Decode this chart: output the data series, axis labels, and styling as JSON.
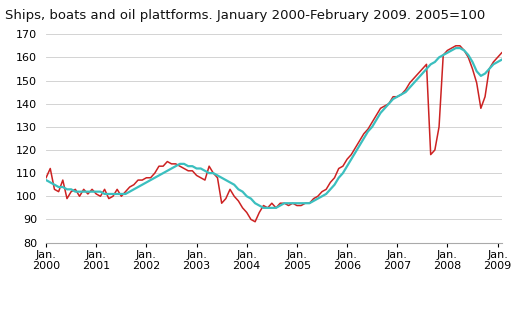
{
  "title": "Ships, boats and oil plattforms. January 2000-February 2009. 2005=100",
  "trend_color": "#3BBFBF",
  "seasonal_color": "#CC2222",
  "trend_linewidth": 1.6,
  "seasonal_linewidth": 1.1,
  "background_color": "#ffffff",
  "grid_color": "#cccccc",
  "title_fontsize": 9.5,
  "tick_fontsize": 8,
  "legend_fontsize": 8.5,
  "ylim": [
    80,
    170
  ],
  "yticks": [
    80,
    90,
    100,
    110,
    120,
    130,
    140,
    150,
    160,
    170
  ],
  "xtick_positions": [
    0,
    12,
    24,
    36,
    48,
    60,
    72,
    84,
    96,
    108
  ],
  "xtick_labels": [
    "Jan.\n2000",
    "Jan.\n2001",
    "Jan.\n2002",
    "Jan.\n2003",
    "Jan.\n2004",
    "Jan.\n2005",
    "Jan.\n2006",
    "Jan.\n2007",
    "Jan.\n2008",
    "Jan.\n2009"
  ],
  "n_months": 110,
  "trend_vals": [
    107,
    106,
    105,
    104,
    104,
    103,
    103,
    102,
    102,
    102,
    102,
    102,
    102,
    102,
    101,
    101,
    101,
    101,
    101,
    101,
    102,
    103,
    104,
    105,
    106,
    107,
    108,
    109,
    110,
    111,
    112,
    113,
    114,
    114,
    113,
    113,
    112,
    112,
    111,
    110,
    110,
    109,
    108,
    107,
    106,
    105,
    103,
    102,
    100,
    99,
    97,
    96,
    95,
    95,
    95,
    95,
    96,
    97,
    97,
    97,
    97,
    97,
    97,
    97,
    98,
    99,
    100,
    101,
    103,
    105,
    108,
    110,
    113,
    116,
    119,
    122,
    125,
    128,
    130,
    133,
    136,
    138,
    140,
    142,
    143,
    144,
    145,
    147,
    149,
    151,
    153,
    155,
    157,
    158,
    160,
    161,
    162,
    163,
    164,
    164,
    163,
    161,
    158,
    154,
    152,
    153,
    155,
    157,
    158,
    159
  ],
  "seasonal_vals": [
    108,
    112,
    103,
    102,
    107,
    99,
    102,
    103,
    100,
    103,
    101,
    103,
    101,
    100,
    103,
    99,
    100,
    103,
    100,
    102,
    104,
    105,
    107,
    107,
    108,
    108,
    110,
    113,
    113,
    115,
    114,
    114,
    113,
    112,
    111,
    111,
    109,
    108,
    107,
    113,
    110,
    108,
    97,
    99,
    103,
    100,
    98,
    95,
    93,
    90,
    89,
    93,
    96,
    95,
    97,
    95,
    97,
    97,
    96,
    97,
    96,
    96,
    97,
    97,
    99,
    100,
    102,
    103,
    106,
    108,
    112,
    113,
    116,
    118,
    121,
    124,
    127,
    129,
    132,
    135,
    138,
    139,
    140,
    143,
    143,
    144,
    146,
    149,
    151,
    153,
    155,
    157,
    118,
    120,
    130,
    161,
    163,
    164,
    165,
    165,
    163,
    160,
    155,
    149,
    138,
    143,
    155,
    158,
    160,
    162
  ]
}
